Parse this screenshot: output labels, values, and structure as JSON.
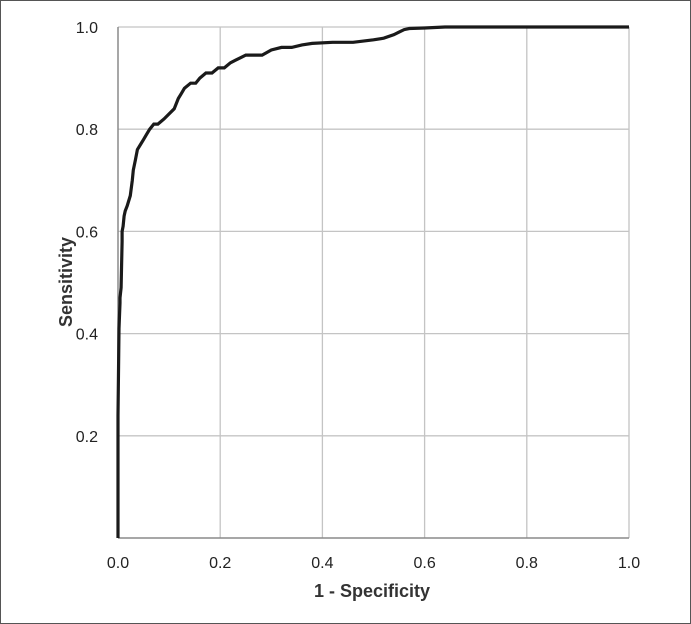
{
  "chart_data": {
    "type": "line",
    "title": "",
    "xlabel": "1 - Specificity",
    "ylabel": "Sensitivity",
    "xlim": [
      0,
      1
    ],
    "ylim": [
      0,
      1
    ],
    "grid": true,
    "legend": "none",
    "x_ticks": [
      0,
      0.2,
      0.4,
      0.6,
      0.8,
      1
    ],
    "x_tick_labels": [
      "0.0",
      "0.2",
      "0.4",
      "0.6",
      "0.8",
      "1.0"
    ],
    "y_ticks": [
      0.2,
      0.4,
      0.6,
      0.8,
      1
    ],
    "y_tick_labels": [
      "0.2",
      "0.4",
      "0.6",
      "0.8",
      "1.0"
    ],
    "line_color": "#1a1a1a",
    "grid_color": "#c4c4c4",
    "series": [
      {
        "x": [
          0,
          0,
          0.002,
          0.004,
          0.004,
          0.006,
          0.008,
          0.008,
          0.01,
          0.012,
          0.014,
          0.018,
          0.024,
          0.028,
          0.03,
          0.034,
          0.038,
          0.044,
          0.05,
          0.056,
          0.062,
          0.07,
          0.078,
          0.09,
          0.1,
          0.11,
          0.118,
          0.124,
          0.13,
          0.142,
          0.152,
          0.16,
          0.172,
          0.184,
          0.196,
          0.208,
          0.22,
          0.23,
          0.24,
          0.25,
          0.262,
          0.282,
          0.3,
          0.32,
          0.34,
          0.36,
          0.38,
          0.42,
          0.46,
          0.5,
          0.52,
          0.54,
          0.55,
          0.56,
          0.57,
          0.6,
          0.64,
          0.7,
          1
        ],
        "y": [
          0,
          0.24,
          0.41,
          0.46,
          0.47,
          0.49,
          0.58,
          0.6,
          0.61,
          0.63,
          0.64,
          0.65,
          0.67,
          0.7,
          0.72,
          0.74,
          0.76,
          0.77,
          0.78,
          0.79,
          0.8,
          0.81,
          0.81,
          0.82,
          0.83,
          0.84,
          0.86,
          0.87,
          0.88,
          0.89,
          0.89,
          0.9,
          0.91,
          0.91,
          0.92,
          0.92,
          0.93,
          0.935,
          0.94,
          0.945,
          0.945,
          0.945,
          0.955,
          0.96,
          0.96,
          0.965,
          0.968,
          0.97,
          0.97,
          0.975,
          0.978,
          0.985,
          0.99,
          0.995,
          0.997,
          0.998,
          1,
          1,
          1
        ]
      }
    ]
  }
}
